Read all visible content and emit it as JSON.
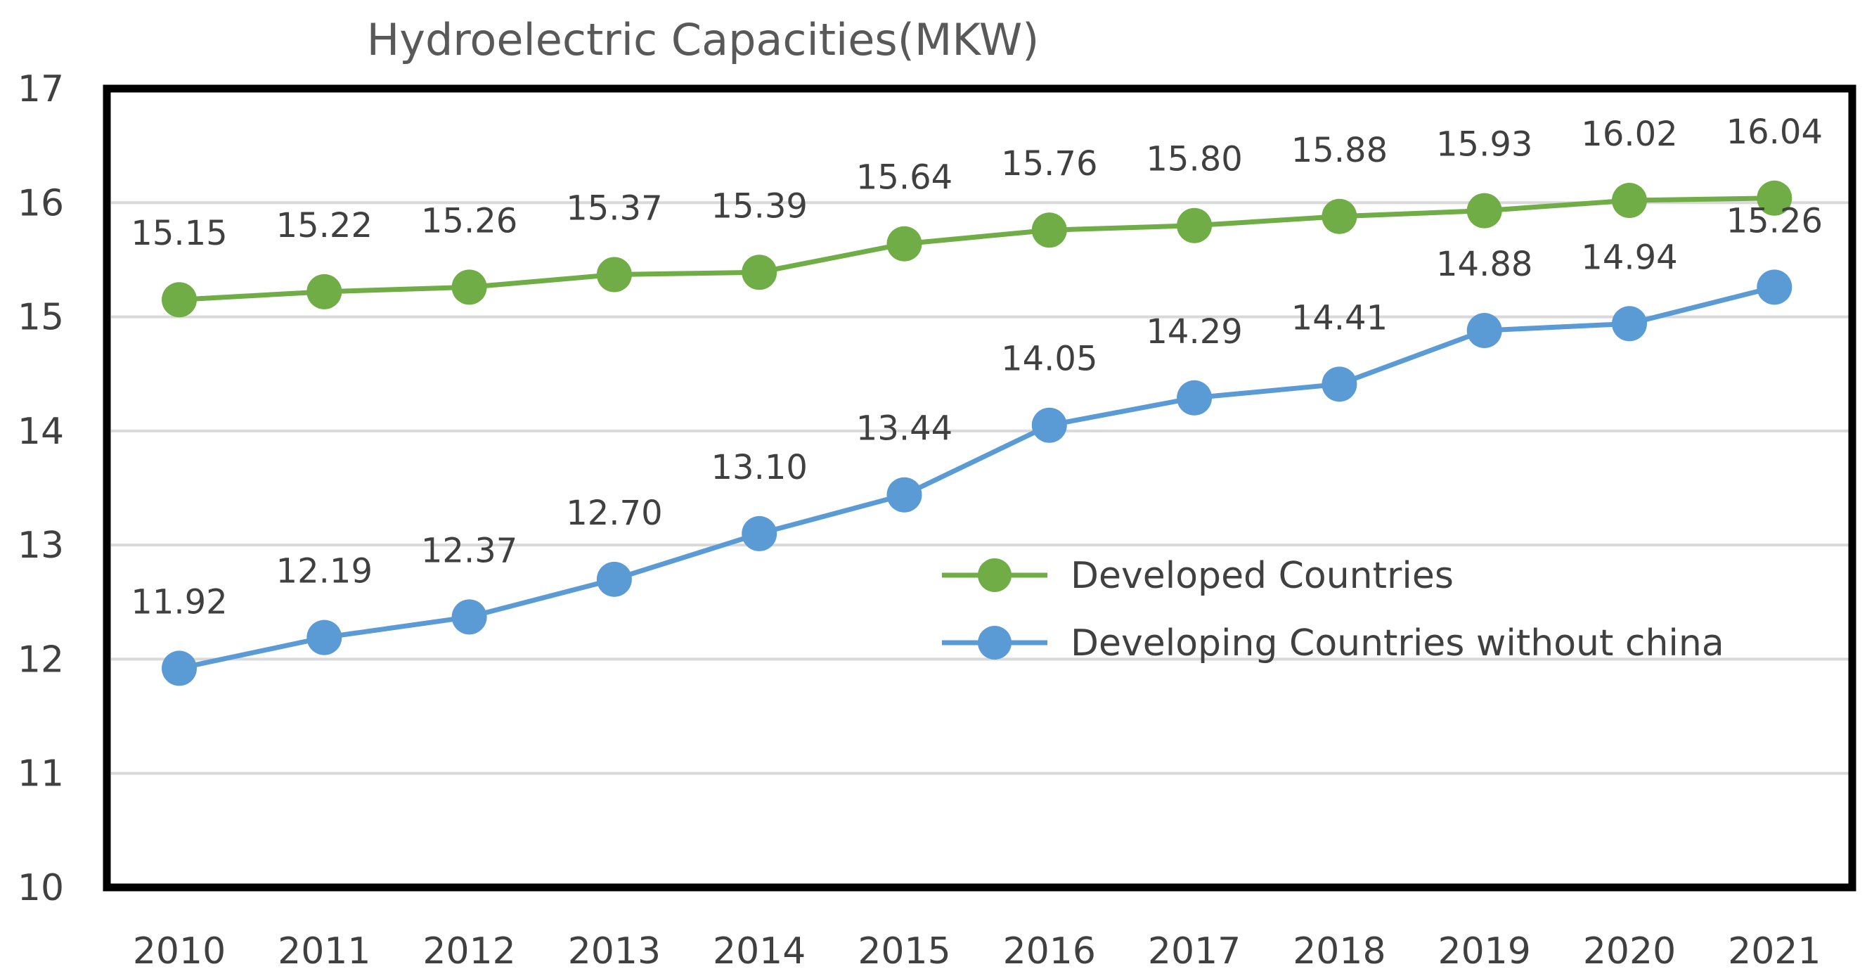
{
  "chart_data": {
    "type": "line",
    "title": "Hydroelectric Capacities(MKW)",
    "xlabel": "",
    "ylabel": "",
    "categories": [
      "2010",
      "2011",
      "2012",
      "2013",
      "2014",
      "2015",
      "2016",
      "2017",
      "2018",
      "2019",
      "2020",
      "2021"
    ],
    "ylim": [
      10,
      17
    ],
    "yticks": [
      10,
      11,
      12,
      13,
      14,
      15,
      16,
      17
    ],
    "grid": true,
    "legend_position": "center-right",
    "series": [
      {
        "name": "Developed Countries",
        "color": "#70AD47",
        "values": [
          15.15,
          15.22,
          15.26,
          15.37,
          15.39,
          15.64,
          15.76,
          15.8,
          15.88,
          15.93,
          16.02,
          16.04
        ],
        "labels": [
          "15.15",
          "15.22",
          "15.26",
          "15.37",
          "15.39",
          "15.64",
          "15.76",
          "15.80",
          "15.88",
          "15.93",
          "16.02",
          "16.04"
        ]
      },
      {
        "name": "Developing Countries without china",
        "color": "#5B9BD5",
        "values": [
          11.92,
          12.19,
          12.37,
          12.7,
          13.1,
          13.44,
          14.05,
          14.29,
          14.41,
          14.88,
          14.94,
          15.26
        ],
        "labels": [
          "11.92",
          "12.19",
          "12.37",
          "12.70",
          "13.10",
          "13.44",
          "14.05",
          "14.29",
          "14.41",
          "14.88",
          "14.94",
          "15.26"
        ]
      }
    ]
  }
}
